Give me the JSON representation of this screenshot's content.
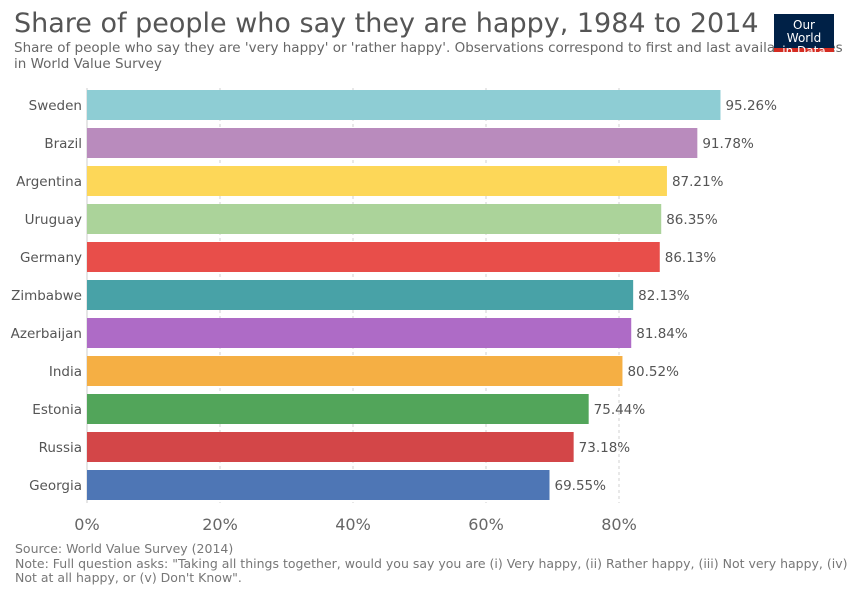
{
  "header": {
    "title": "Share of people who say they are happy, 1984 to 2014",
    "subtitle": "Share of people who say they are 'very happy' or 'rather happy'. Observations correspond to first and last available waves in World Value Survey"
  },
  "logo": {
    "line1": "Our World",
    "line2": "in Data"
  },
  "footer": {
    "source": "Source: World Value Survey (2014)",
    "note": "Note: Full question asks: \"Taking all things together, would you say you are (i) Very happy, (ii) Rather happy, (iii) Not very happy, (iv) Not at all happy, or (v) Don't Know\"."
  },
  "chart_data": {
    "type": "bar",
    "orientation": "horizontal",
    "categories": [
      "Sweden",
      "Brazil",
      "Argentina",
      "Uruguay",
      "Germany",
      "Zimbabwe",
      "Azerbaijan",
      "India",
      "Estonia",
      "Russia",
      "Georgia"
    ],
    "values": [
      95.26,
      91.78,
      87.21,
      86.35,
      86.13,
      82.13,
      81.84,
      80.52,
      75.44,
      73.18,
      69.55
    ],
    "value_labels": [
      "95.26%",
      "91.78%",
      "87.21%",
      "86.35%",
      "86.13%",
      "82.13%",
      "81.84%",
      "80.52%",
      "75.44%",
      "73.18%",
      "69.55%"
    ],
    "colors": [
      "#8ecdd4",
      "#b98bbd",
      "#fdd758",
      "#abd39a",
      "#e84e4a",
      "#48a2a7",
      "#ae6bc6",
      "#f5af44",
      "#52a55a",
      "#d34648",
      "#4e76b5"
    ],
    "xlim": [
      0,
      100
    ],
    "x_ticks": [
      0,
      20,
      40,
      60,
      80
    ],
    "x_tick_labels": [
      "0%",
      "20%",
      "40%",
      "60%",
      "80%"
    ],
    "grid": true
  }
}
